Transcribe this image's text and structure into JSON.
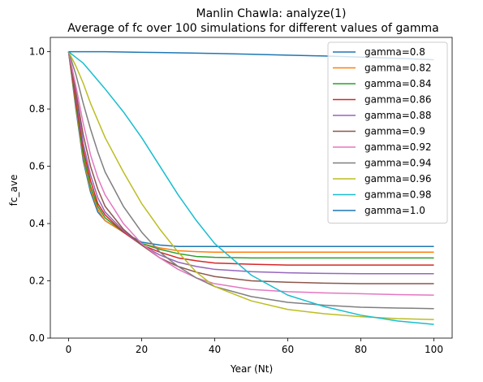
{
  "chart_data": {
    "type": "line",
    "title": "Manlin Chawla: analyze(1)",
    "subtitle": "Average of fc over 100 simulations for different values of gamma",
    "xlabel": "Year (Nt)",
    "ylabel": "fc_ave",
    "xlim": [
      -5,
      105
    ],
    "ylim": [
      0,
      1.05
    ],
    "xticks": [
      0,
      20,
      40,
      60,
      80,
      100
    ],
    "yticks": [
      0.0,
      0.2,
      0.4,
      0.6,
      0.8,
      1.0
    ],
    "xtick_labels": [
      "0",
      "20",
      "40",
      "60",
      "80",
      "100"
    ],
    "ytick_labels": [
      "0.0",
      "0.2",
      "0.4",
      "0.6",
      "0.8",
      "1.0"
    ],
    "grid": false,
    "legend_position": "top-right",
    "x": [
      0,
      2,
      4,
      6,
      8,
      10,
      15,
      20,
      25,
      30,
      35,
      40,
      50,
      60,
      70,
      80,
      90,
      100
    ],
    "series": [
      {
        "name": "gamma=0.8",
        "color": "#1f77b4",
        "values": [
          1.0,
          0.8,
          0.62,
          0.51,
          0.44,
          0.41,
          0.37,
          0.335,
          0.325,
          0.32,
          0.32,
          0.32,
          0.32,
          0.32,
          0.32,
          0.32,
          0.32,
          0.32
        ]
      },
      {
        "name": "gamma=0.82",
        "color": "#ff7f0e",
        "values": [
          1.0,
          0.81,
          0.63,
          0.52,
          0.45,
          0.41,
          0.37,
          0.33,
          0.315,
          0.305,
          0.302,
          0.3,
          0.3,
          0.3,
          0.3,
          0.3,
          0.3,
          0.3
        ]
      },
      {
        "name": "gamma=0.84",
        "color": "#2ca02c",
        "values": [
          1.0,
          0.82,
          0.64,
          0.53,
          0.46,
          0.42,
          0.37,
          0.33,
          0.31,
          0.295,
          0.285,
          0.282,
          0.28,
          0.28,
          0.28,
          0.28,
          0.28,
          0.28
        ]
      },
      {
        "name": "gamma=0.86",
        "color": "#d62728",
        "values": [
          1.0,
          0.83,
          0.66,
          0.55,
          0.47,
          0.43,
          0.37,
          0.325,
          0.3,
          0.28,
          0.27,
          0.262,
          0.258,
          0.255,
          0.255,
          0.255,
          0.255,
          0.255
        ]
      },
      {
        "name": "gamma=0.88",
        "color": "#9467bd",
        "values": [
          1.0,
          0.85,
          0.68,
          0.57,
          0.49,
          0.44,
          0.375,
          0.325,
          0.29,
          0.265,
          0.25,
          0.24,
          0.232,
          0.228,
          0.226,
          0.225,
          0.225,
          0.225
        ]
      },
      {
        "name": "gamma=0.9",
        "color": "#8c564b",
        "values": [
          1.0,
          0.86,
          0.71,
          0.6,
          0.52,
          0.46,
          0.38,
          0.325,
          0.28,
          0.25,
          0.23,
          0.215,
          0.2,
          0.195,
          0.192,
          0.19,
          0.19,
          0.19
        ]
      },
      {
        "name": "gamma=0.92",
        "color": "#e377c2",
        "values": [
          1.0,
          0.88,
          0.75,
          0.64,
          0.56,
          0.5,
          0.4,
          0.33,
          0.28,
          0.24,
          0.21,
          0.19,
          0.17,
          0.162,
          0.158,
          0.155,
          0.152,
          0.15
        ]
      },
      {
        "name": "gamma=0.94",
        "color": "#7f7f7f",
        "values": [
          1.0,
          0.92,
          0.82,
          0.73,
          0.65,
          0.58,
          0.46,
          0.37,
          0.3,
          0.25,
          0.21,
          0.18,
          0.145,
          0.125,
          0.115,
          0.108,
          0.105,
          0.103
        ]
      },
      {
        "name": "gamma=0.96",
        "color": "#bcbd22",
        "values": [
          1.0,
          0.95,
          0.89,
          0.82,
          0.76,
          0.7,
          0.58,
          0.47,
          0.38,
          0.3,
          0.23,
          0.18,
          0.13,
          0.1,
          0.085,
          0.075,
          0.068,
          0.065
        ]
      },
      {
        "name": "gamma=0.98",
        "color": "#17becf",
        "values": [
          1.0,
          0.98,
          0.96,
          0.93,
          0.9,
          0.87,
          0.79,
          0.7,
          0.6,
          0.5,
          0.41,
          0.33,
          0.22,
          0.15,
          0.11,
          0.08,
          0.06,
          0.048
        ]
      },
      {
        "name": "gamma=1.0",
        "color": "#1f77b4",
        "values": [
          1.0,
          1.0,
          1.0,
          1.0,
          1.0,
          1.0,
          0.999,
          0.998,
          0.997,
          0.996,
          0.995,
          0.994,
          0.991,
          0.988,
          0.985,
          0.981,
          0.977,
          0.972
        ]
      }
    ]
  }
}
